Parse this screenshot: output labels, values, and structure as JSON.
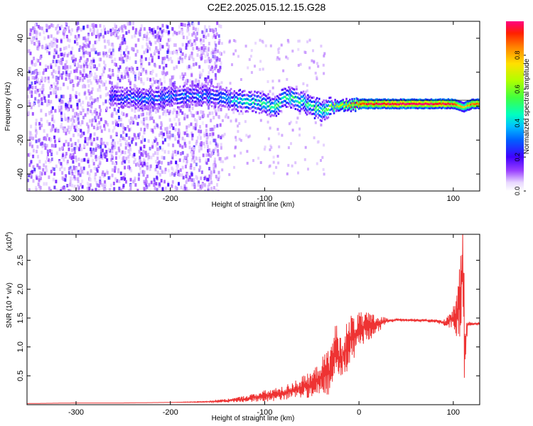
{
  "title": "C2E2.2025.015.12.15.G28",
  "chart_data": [
    {
      "type": "heatmap",
      "title": "C2E2.2025.015.12.15.G28",
      "xlabel": "Height of straight line (km)",
      "ylabel": "Frequency (Hz)",
      "xlim": [
        -352,
        128
      ],
      "ylim": [
        -50,
        50
      ],
      "x_ticks": [
        "-300",
        "-200",
        "-100",
        "0",
        "100"
      ],
      "y_ticks": [
        "40",
        "20",
        "0",
        "-20",
        "-40"
      ],
      "colorbar": {
        "label": "Normalized spectral amplitude",
        "range": [
          0,
          1
        ],
        "ticks": [
          "0.0",
          "0.2",
          "0.4",
          "0.6",
          "0.8"
        ]
      },
      "ridge": {
        "description_points_x": [
          -260,
          -230,
          -200,
          -170,
          -150,
          -130,
          -110,
          -100,
          -90,
          -80,
          -70,
          -60,
          -50,
          -40,
          -30,
          -20,
          -10,
          0,
          20,
          40,
          60,
          80,
          100,
          110,
          120,
          128
        ],
        "frequency": [
          6,
          5,
          6,
          7,
          6,
          4,
          3,
          2,
          0,
          6,
          5,
          3,
          0,
          -2,
          0,
          1,
          1,
          2,
          2,
          2,
          2,
          2,
          2,
          0,
          2,
          2
        ],
        "amplitude": [
          0.25,
          0.3,
          0.3,
          0.3,
          0.3,
          0.4,
          0.45,
          0.45,
          0.5,
          0.45,
          0.5,
          0.45,
          0.5,
          0.5,
          0.6,
          0.7,
          0.8,
          0.9,
          0.95,
          1.0,
          1.0,
          1.0,
          0.9,
          0.7,
          0.9,
          0.9
        ]
      }
    },
    {
      "type": "line",
      "xlabel": "Height of straight line (km)",
      "ylabel": "SNR (10 * v/v)",
      "y_multiplier": "(x10",
      "y_multiplier_exp": "4",
      "xlim": [
        -352,
        128
      ],
      "ylim": [
        0,
        2.95
      ],
      "x_ticks": [
        "-300",
        "-200",
        "-100",
        "0",
        "100"
      ],
      "y_ticks": [
        "0.5",
        "1.0",
        "1.5",
        "2.0",
        "2.5"
      ],
      "color": "#ee3333",
      "x": [
        -352,
        -300,
        -250,
        -200,
        -160,
        -140,
        -120,
        -100,
        -80,
        -60,
        -50,
        -40,
        -30,
        -25,
        -20,
        -15,
        -10,
        -5,
        0,
        10,
        20,
        30,
        40,
        60,
        80,
        90,
        95,
        100,
        105,
        108,
        110,
        112,
        115,
        120,
        128
      ],
      "y": [
        0.02,
        0.03,
        0.03,
        0.04,
        0.05,
        0.07,
        0.1,
        0.15,
        0.2,
        0.3,
        0.35,
        0.5,
        0.6,
        1.0,
        0.8,
        0.9,
        1.1,
        1.2,
        1.3,
        1.35,
        1.4,
        1.45,
        1.47,
        1.46,
        1.45,
        1.42,
        1.45,
        1.5,
        1.6,
        1.9,
        2.9,
        1.0,
        1.4,
        1.4,
        1.4
      ],
      "envelope": [
        0,
        0,
        0,
        0,
        0.01,
        0.03,
        0.06,
        0.1,
        0.12,
        0.2,
        0.22,
        0.3,
        0.45,
        0.45,
        0.4,
        0.45,
        0.45,
        0.4,
        0.3,
        0.25,
        0.15,
        0.05,
        0.02,
        0.02,
        0.03,
        0.05,
        0.15,
        0.25,
        0.5,
        0.7,
        1.0,
        0.8,
        0.05,
        0.02,
        0.02
      ]
    }
  ]
}
